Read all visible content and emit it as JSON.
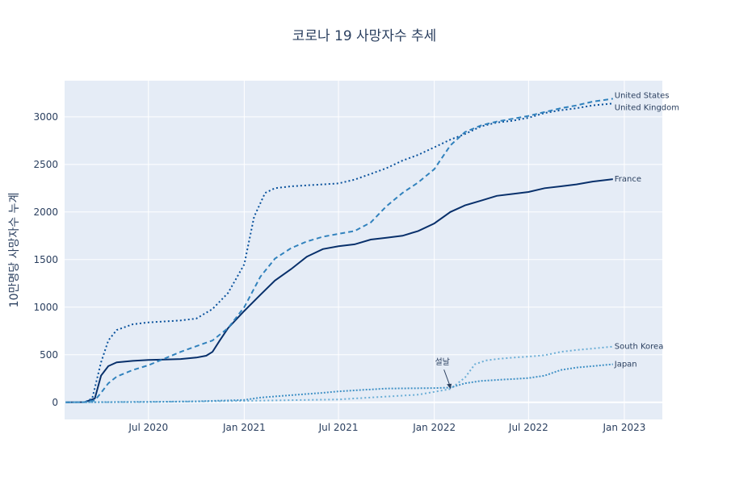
{
  "chart_data": {
    "type": "line",
    "title": "코로나 19 사망자수 추세",
    "xlabel": "",
    "ylabel": "10만명당 사망자수 누계",
    "x_ticks": [
      "Jul 2020",
      "Jan 2021",
      "Jul 2021",
      "Jan 2022",
      "Jul 2022",
      "Jan 2023"
    ],
    "x_tick_dates": [
      "2020-07-01",
      "2021-01-01",
      "2021-07-01",
      "2022-01-01",
      "2022-07-01",
      "2023-01-01"
    ],
    "xlim": [
      "2020-01-22",
      "2023-03-15"
    ],
    "y_ticks": [
      0,
      500,
      1000,
      1500,
      2000,
      2500,
      3000
    ],
    "ylim": [
      -180,
      3380
    ],
    "grid": true,
    "legend": "inline end-of-line labels",
    "colors": {
      "plot_bg": "#e5ecf6",
      "france": "#08306b",
      "united_kingdom": "#08519c",
      "united_states": "#3182bd",
      "south_korea": "#6baed6",
      "japan": "#4292c6"
    },
    "series": [
      {
        "name": "France",
        "dash": "solid",
        "points": [
          [
            "2020-01-24",
            0
          ],
          [
            "2020-03-01",
            2
          ],
          [
            "2020-03-20",
            40
          ],
          [
            "2020-04-01",
            280
          ],
          [
            "2020-04-15",
            380
          ],
          [
            "2020-05-01",
            420
          ],
          [
            "2020-06-01",
            435
          ],
          [
            "2020-07-01",
            445
          ],
          [
            "2020-08-01",
            450
          ],
          [
            "2020-09-01",
            455
          ],
          [
            "2020-10-01",
            470
          ],
          [
            "2020-10-20",
            490
          ],
          [
            "2020-11-01",
            530
          ],
          [
            "2020-11-15",
            650
          ],
          [
            "2020-12-01",
            780
          ],
          [
            "2021-01-01",
            960
          ],
          [
            "2021-02-01",
            1130
          ],
          [
            "2021-03-01",
            1280
          ],
          [
            "2021-04-01",
            1400
          ],
          [
            "2021-05-01",
            1530
          ],
          [
            "2021-06-01",
            1610
          ],
          [
            "2021-07-01",
            1640
          ],
          [
            "2021-08-01",
            1660
          ],
          [
            "2021-09-01",
            1710
          ],
          [
            "2021-10-01",
            1730
          ],
          [
            "2021-11-01",
            1750
          ],
          [
            "2021-12-01",
            1800
          ],
          [
            "2022-01-01",
            1880
          ],
          [
            "2022-02-01",
            2000
          ],
          [
            "2022-03-01",
            2070
          ],
          [
            "2022-04-01",
            2120
          ],
          [
            "2022-05-01",
            2170
          ],
          [
            "2022-06-01",
            2190
          ],
          [
            "2022-07-01",
            2210
          ],
          [
            "2022-08-01",
            2250
          ],
          [
            "2022-09-01",
            2270
          ],
          [
            "2022-10-01",
            2290
          ],
          [
            "2022-11-01",
            2320
          ],
          [
            "2022-12-10",
            2345
          ]
        ]
      },
      {
        "name": "United Kingdom",
        "dash": "dot",
        "points": [
          [
            "2020-01-24",
            0
          ],
          [
            "2020-03-01",
            2
          ],
          [
            "2020-03-15",
            40
          ],
          [
            "2020-04-01",
            420
          ],
          [
            "2020-04-15",
            650
          ],
          [
            "2020-05-01",
            760
          ],
          [
            "2020-06-01",
            820
          ],
          [
            "2020-07-01",
            840
          ],
          [
            "2020-08-01",
            850
          ],
          [
            "2020-09-01",
            860
          ],
          [
            "2020-10-01",
            880
          ],
          [
            "2020-11-01",
            980
          ],
          [
            "2020-12-01",
            1150
          ],
          [
            "2021-01-01",
            1450
          ],
          [
            "2021-01-20",
            1950
          ],
          [
            "2021-02-10",
            2200
          ],
          [
            "2021-03-01",
            2250
          ],
          [
            "2021-04-01",
            2270
          ],
          [
            "2021-05-01",
            2280
          ],
          [
            "2021-06-01",
            2290
          ],
          [
            "2021-07-01",
            2300
          ],
          [
            "2021-08-01",
            2340
          ],
          [
            "2021-09-01",
            2400
          ],
          [
            "2021-10-01",
            2460
          ],
          [
            "2021-11-01",
            2540
          ],
          [
            "2021-12-01",
            2600
          ],
          [
            "2022-01-01",
            2680
          ],
          [
            "2022-02-01",
            2760
          ],
          [
            "2022-03-01",
            2820
          ],
          [
            "2022-04-01",
            2900
          ],
          [
            "2022-05-01",
            2940
          ],
          [
            "2022-06-01",
            2960
          ],
          [
            "2022-07-01",
            2990
          ],
          [
            "2022-08-01",
            3040
          ],
          [
            "2022-09-01",
            3070
          ],
          [
            "2022-10-01",
            3090
          ],
          [
            "2022-11-01",
            3120
          ],
          [
            "2022-12-10",
            3140
          ]
        ]
      },
      {
        "name": "United States",
        "dash": "dash",
        "points": [
          [
            "2020-01-24",
            0
          ],
          [
            "2020-03-01",
            1
          ],
          [
            "2020-03-20",
            20
          ],
          [
            "2020-04-01",
            100
          ],
          [
            "2020-04-15",
            200
          ],
          [
            "2020-05-01",
            270
          ],
          [
            "2020-06-01",
            340
          ],
          [
            "2020-07-01",
            390
          ],
          [
            "2020-08-01",
            460
          ],
          [
            "2020-09-01",
            530
          ],
          [
            "2020-10-01",
            590
          ],
          [
            "2020-11-01",
            650
          ],
          [
            "2020-12-01",
            780
          ],
          [
            "2021-01-01",
            1000
          ],
          [
            "2021-02-01",
            1320
          ],
          [
            "2021-03-01",
            1510
          ],
          [
            "2021-04-01",
            1620
          ],
          [
            "2021-05-01",
            1690
          ],
          [
            "2021-06-01",
            1740
          ],
          [
            "2021-07-01",
            1770
          ],
          [
            "2021-08-01",
            1800
          ],
          [
            "2021-09-01",
            1890
          ],
          [
            "2021-10-01",
            2060
          ],
          [
            "2021-11-01",
            2200
          ],
          [
            "2021-12-01",
            2310
          ],
          [
            "2022-01-01",
            2450
          ],
          [
            "2022-02-01",
            2700
          ],
          [
            "2022-03-01",
            2840
          ],
          [
            "2022-04-01",
            2910
          ],
          [
            "2022-05-01",
            2950
          ],
          [
            "2022-06-01",
            2980
          ],
          [
            "2022-07-01",
            3010
          ],
          [
            "2022-08-01",
            3050
          ],
          [
            "2022-09-01",
            3090
          ],
          [
            "2022-10-01",
            3120
          ],
          [
            "2022-11-01",
            3160
          ],
          [
            "2022-12-10",
            3190
          ]
        ]
      },
      {
        "name": "South Korea",
        "dash": "dot",
        "points": [
          [
            "2020-01-24",
            0
          ],
          [
            "2020-07-01",
            3
          ],
          [
            "2021-01-01",
            15
          ],
          [
            "2021-07-01",
            30
          ],
          [
            "2021-12-01",
            80
          ],
          [
            "2022-01-01",
            110
          ],
          [
            "2022-02-01",
            140
          ],
          [
            "2022-03-01",
            260
          ],
          [
            "2022-03-20",
            400
          ],
          [
            "2022-04-10",
            440
          ],
          [
            "2022-05-01",
            455
          ],
          [
            "2022-06-01",
            470
          ],
          [
            "2022-07-01",
            480
          ],
          [
            "2022-08-01",
            495
          ],
          [
            "2022-09-01",
            530
          ],
          [
            "2022-10-01",
            550
          ],
          [
            "2022-11-01",
            565
          ],
          [
            "2022-12-10",
            585
          ]
        ]
      },
      {
        "name": "Japan",
        "dash": "dashdot",
        "points": [
          [
            "2020-01-24",
            0
          ],
          [
            "2020-07-01",
            5
          ],
          [
            "2020-10-01",
            10
          ],
          [
            "2021-01-01",
            25
          ],
          [
            "2021-02-01",
            50
          ],
          [
            "2021-04-01",
            75
          ],
          [
            "2021-06-01",
            100
          ],
          [
            "2021-07-01",
            115
          ],
          [
            "2021-09-01",
            135
          ],
          [
            "2021-10-01",
            145
          ],
          [
            "2022-01-01",
            150
          ],
          [
            "2022-02-01",
            155
          ],
          [
            "2022-03-01",
            200
          ],
          [
            "2022-04-01",
            225
          ],
          [
            "2022-05-01",
            235
          ],
          [
            "2022-06-01",
            245
          ],
          [
            "2022-07-01",
            255
          ],
          [
            "2022-08-01",
            280
          ],
          [
            "2022-09-01",
            340
          ],
          [
            "2022-10-01",
            365
          ],
          [
            "2022-11-01",
            380
          ],
          [
            "2022-12-10",
            400
          ]
        ]
      }
    ],
    "annotations": [
      {
        "text": "설날",
        "x": "2022-02-01",
        "y": 140,
        "arrow": true
      }
    ]
  }
}
